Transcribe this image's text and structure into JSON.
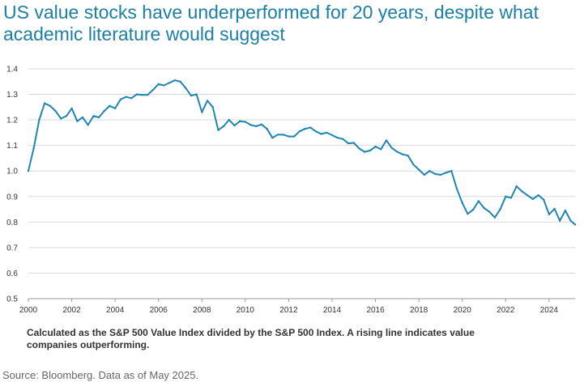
{
  "chart_data": {
    "type": "line",
    "title": "US value stocks have underperformed for 20 years, despite what academic literature would suggest",
    "xlabel": "",
    "ylabel": "",
    "xlim": [
      2000,
      2025.2
    ],
    "ylim": [
      0.5,
      1.4
    ],
    "x_ticks": [
      "2000",
      "2002",
      "2004",
      "2006",
      "2008",
      "2010",
      "2012",
      "2014",
      "2016",
      "2018",
      "2020",
      "2022",
      "2024"
    ],
    "y_ticks": [
      "0.5",
      "0.6",
      "0.7",
      "0.8",
      "0.9",
      "1.0",
      "1.1",
      "1.2",
      "1.3",
      "1.4"
    ],
    "grid": true,
    "line_color": "#1f86b3",
    "series": [
      {
        "name": "S&P 500 Value Index / S&P 500 Index",
        "x": [
          2000,
          2000.25,
          2000.5,
          2000.75,
          2001,
          2001.25,
          2001.5,
          2001.75,
          2002,
          2002.25,
          2002.5,
          2002.75,
          2003,
          2003.25,
          2003.5,
          2003.75,
          2004,
          2004.25,
          2004.5,
          2004.75,
          2005,
          2005.25,
          2005.5,
          2005.75,
          2006,
          2006.25,
          2006.5,
          2006.75,
          2007,
          2007.25,
          2007.5,
          2007.75,
          2008,
          2008.25,
          2008.5,
          2008.75,
          2009,
          2009.25,
          2009.5,
          2009.75,
          2010,
          2010.25,
          2010.5,
          2010.75,
          2011,
          2011.25,
          2011.5,
          2011.75,
          2012,
          2012.25,
          2012.5,
          2012.75,
          2013,
          2013.25,
          2013.5,
          2013.75,
          2014,
          2014.25,
          2014.5,
          2014.75,
          2015,
          2015.25,
          2015.5,
          2015.75,
          2016,
          2016.25,
          2016.5,
          2016.75,
          2017,
          2017.25,
          2017.5,
          2017.75,
          2018,
          2018.25,
          2018.5,
          2018.75,
          2019,
          2019.25,
          2019.5,
          2019.75,
          2020,
          2020.25,
          2020.5,
          2020.75,
          2021,
          2021.25,
          2021.5,
          2021.75,
          2022,
          2022.25,
          2022.5,
          2022.75,
          2023,
          2023.25,
          2023.5,
          2023.75,
          2024,
          2024.25,
          2024.5,
          2024.75,
          2025,
          2025.2
        ],
        "values": [
          1.0,
          1.09,
          1.2,
          1.265,
          1.255,
          1.235,
          1.205,
          1.215,
          1.245,
          1.195,
          1.21,
          1.18,
          1.215,
          1.21,
          1.235,
          1.255,
          1.245,
          1.28,
          1.29,
          1.285,
          1.3,
          1.298,
          1.298,
          1.318,
          1.34,
          1.335,
          1.345,
          1.355,
          1.35,
          1.325,
          1.295,
          1.3,
          1.23,
          1.275,
          1.25,
          1.16,
          1.175,
          1.2,
          1.178,
          1.195,
          1.192,
          1.18,
          1.175,
          1.182,
          1.165,
          1.13,
          1.142,
          1.142,
          1.135,
          1.135,
          1.155,
          1.165,
          1.17,
          1.155,
          1.145,
          1.15,
          1.14,
          1.13,
          1.125,
          1.108,
          1.11,
          1.088,
          1.075,
          1.08,
          1.095,
          1.085,
          1.12,
          1.09,
          1.075,
          1.065,
          1.06,
          1.025,
          1.005,
          0.985,
          1.0,
          0.988,
          0.985,
          0.993,
          1.0,
          0.93,
          0.875,
          0.832,
          0.848,
          0.882,
          0.855,
          0.84,
          0.818,
          0.85,
          0.9,
          0.895,
          0.94,
          0.92,
          0.905,
          0.89,
          0.905,
          0.888,
          0.83,
          0.852,
          0.805,
          0.845,
          0.805,
          0.79
        ]
      }
    ]
  },
  "caption": "Calculated as the S&P 500 Value Index divided by the S&P 500 Index. A rising line indicates value companies outperforming.",
  "source": "Source: Bloomberg. Data as of May 2025."
}
